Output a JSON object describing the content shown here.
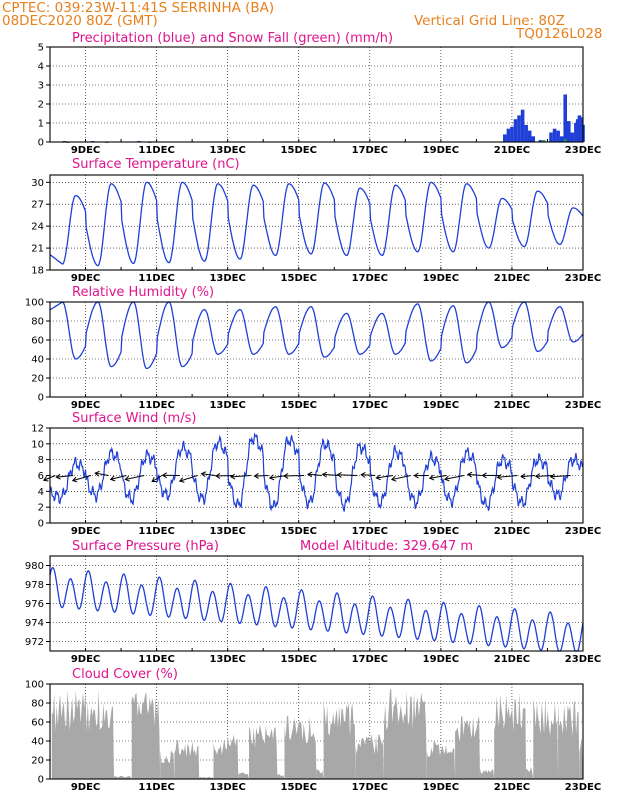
{
  "header": {
    "line1": "CPTEC:  039:23W-11:41S  SERRINHA (BA)",
    "line2": "08DEC2020 80Z (GMT)",
    "grid_line": "Vertical Grid Line: 80Z",
    "code": "TQ0126L028"
  },
  "colors": {
    "header": "#e8801e",
    "title": "#e0148c",
    "line": "#1f3fd6",
    "bar_blue": "#1f3fd6",
    "bar_green": "#1a9a3a",
    "cloud": "#a8a8a8",
    "arrow": "#000000"
  },
  "x_ticks": [
    "9DEC",
    "11DEC",
    "13DEC",
    "15DEC",
    "17DEC",
    "19DEC",
    "21DEC",
    "23DEC"
  ],
  "chart_data": [
    {
      "type": "bar",
      "title": "Precipitation (blue) and Snow Fall (green) (mm/h)",
      "ylim": [
        0,
        5
      ],
      "yticks": [
        "0",
        "1",
        "2",
        "3",
        "4",
        "5"
      ],
      "x_range_days": [
        8.0,
        23.0
      ],
      "series": [
        {
          "name": "Precipitation",
          "points": [
            [
              8.4,
              0.05
            ],
            [
              9.2,
              0.05
            ],
            [
              10.5,
              0.05
            ],
            [
              20.8,
              0.4
            ],
            [
              20.9,
              0.7
            ],
            [
              21.0,
              0.8
            ],
            [
              21.1,
              1.2
            ],
            [
              21.2,
              1.4
            ],
            [
              21.3,
              1.7
            ],
            [
              21.4,
              0.9
            ],
            [
              21.5,
              0.6
            ],
            [
              21.6,
              0.3
            ],
            [
              21.8,
              0.1
            ],
            [
              22.1,
              0.5
            ],
            [
              22.2,
              0.7
            ],
            [
              22.3,
              0.6
            ],
            [
              22.4,
              0.3
            ],
            [
              22.5,
              2.5
            ],
            [
              22.6,
              1.1
            ],
            [
              22.7,
              0.5
            ],
            [
              22.8,
              1.0
            ],
            [
              22.85,
              1.2
            ],
            [
              22.9,
              1.4
            ],
            [
              22.95,
              1.3
            ],
            [
              23.0,
              0.9
            ]
          ]
        },
        {
          "name": "Snow Fall",
          "points": [
            [
              8.5,
              0.03
            ],
            [
              9.6,
              0.03
            ],
            [
              10.8,
              0.03
            ],
            [
              21.9,
              0.1
            ],
            [
              22.5,
              0.15
            ]
          ]
        }
      ]
    },
    {
      "type": "line",
      "title": "Surface Temperature (nC)",
      "ylim": [
        18,
        31
      ],
      "yticks": [
        "18",
        "21",
        "24",
        "27",
        "30"
      ],
      "x_range_days": [
        8.0,
        23.0
      ],
      "daily_extremes": [
        {
          "min": 18.8,
          "max": 28.2
        },
        {
          "min": 18.6,
          "max": 29.8
        },
        {
          "min": 18.9,
          "max": 30.0
        },
        {
          "min": 19.0,
          "max": 30.0
        },
        {
          "min": 19.2,
          "max": 29.8
        },
        {
          "min": 19.5,
          "max": 29.6
        },
        {
          "min": 20.0,
          "max": 29.8
        },
        {
          "min": 20.2,
          "max": 29.9
        },
        {
          "min": 20.0,
          "max": 29.2
        },
        {
          "min": 20.0,
          "max": 29.6
        },
        {
          "min": 20.5,
          "max": 30.0
        },
        {
          "min": 20.5,
          "max": 29.8
        },
        {
          "min": 21.0,
          "max": 27.8
        },
        {
          "min": 21.2,
          "max": 28.8
        },
        {
          "min": 21.5,
          "max": 26.5
        }
      ]
    },
    {
      "type": "line",
      "title": "Relative Humidity (%)",
      "ylim": [
        0,
        100
      ],
      "yticks": [
        "0",
        "20",
        "40",
        "60",
        "80",
        "100"
      ],
      "x_range_days": [
        8.0,
        23.0
      ],
      "daily_extremes": [
        {
          "min": 40,
          "max": 100
        },
        {
          "min": 32,
          "max": 100
        },
        {
          "min": 30,
          "max": 100
        },
        {
          "min": 32,
          "max": 100
        },
        {
          "min": 45,
          "max": 92
        },
        {
          "min": 45,
          "max": 92
        },
        {
          "min": 45,
          "max": 95
        },
        {
          "min": 42,
          "max": 95
        },
        {
          "min": 45,
          "max": 88
        },
        {
          "min": 45,
          "max": 88
        },
        {
          "min": 38,
          "max": 98
        },
        {
          "min": 36,
          "max": 96
        },
        {
          "min": 52,
          "max": 100
        },
        {
          "min": 48,
          "max": 100
        },
        {
          "min": 58,
          "max": 95
        }
      ]
    },
    {
      "type": "line",
      "title": "Surface Wind (m/s)",
      "ylim": [
        0,
        12
      ],
      "yticks": [
        "0",
        "2",
        "4",
        "6",
        "8",
        "10",
        "12"
      ],
      "x_range_days": [
        8.0,
        23.0
      ],
      "speed_daily_extremes": [
        {
          "min": 3.2,
          "max": 7.5
        },
        {
          "min": 3.5,
          "max": 8.8
        },
        {
          "min": 3.0,
          "max": 8.5
        },
        {
          "min": 3.5,
          "max": 9.5
        },
        {
          "min": 3.0,
          "max": 10.2
        },
        {
          "min": 2.2,
          "max": 10.8
        },
        {
          "min": 2.0,
          "max": 10.5
        },
        {
          "min": 2.5,
          "max": 10.0
        },
        {
          "min": 2.2,
          "max": 9.6
        },
        {
          "min": 2.5,
          "max": 9.0
        },
        {
          "min": 2.6,
          "max": 8.2
        },
        {
          "min": 2.8,
          "max": 8.8
        },
        {
          "min": 2.2,
          "max": 8.0
        },
        {
          "min": 2.5,
          "max": 8.0
        },
        {
          "min": 3.5,
          "max": 8.0
        }
      ],
      "vector_arrows": "wind direction vectors drawn along 6 m/s reference"
    },
    {
      "type": "line",
      "title": "Surface Pressure (hPa)",
      "subtitle": "Model Altitude: 329.647 m",
      "ylim": [
        971,
        981
      ],
      "yticks": [
        "972",
        "974",
        "976",
        "978",
        "980"
      ],
      "x_range_days": [
        8.0,
        23.0
      ],
      "trend_start": 977.5,
      "trend_end": 972.5,
      "semidiurnal_amplitude": 1.8
    },
    {
      "type": "area",
      "title": "Cloud Cover (%)",
      "ylim": [
        0,
        100
      ],
      "yticks": [
        "0",
        "20",
        "40",
        "60",
        "80",
        "100"
      ],
      "x_range_days": [
        8.0,
        23.0
      ],
      "segments": [
        {
          "from": 8.05,
          "to": 9.8,
          "level": 90
        },
        {
          "from": 9.8,
          "to": 10.3,
          "level": 3
        },
        {
          "from": 10.3,
          "to": 11.1,
          "level": 88
        },
        {
          "from": 11.1,
          "to": 11.5,
          "level": 30
        },
        {
          "from": 11.5,
          "to": 12.2,
          "level": 40
        },
        {
          "from": 12.2,
          "to": 12.6,
          "level": 2
        },
        {
          "from": 12.6,
          "to": 13.3,
          "level": 45
        },
        {
          "from": 13.3,
          "to": 13.6,
          "level": 8
        },
        {
          "from": 13.6,
          "to": 14.4,
          "level": 55
        },
        {
          "from": 14.4,
          "to": 14.6,
          "level": 5
        },
        {
          "from": 14.6,
          "to": 15.5,
          "level": 65
        },
        {
          "from": 15.5,
          "to": 15.7,
          "level": 10
        },
        {
          "from": 15.7,
          "to": 16.6,
          "level": 80
        },
        {
          "from": 16.6,
          "to": 17.4,
          "level": 45
        },
        {
          "from": 17.4,
          "to": 18.6,
          "level": 92
        },
        {
          "from": 18.6,
          "to": 19.4,
          "level": 40
        },
        {
          "from": 19.4,
          "to": 20.1,
          "level": 65
        },
        {
          "from": 20.1,
          "to": 20.5,
          "level": 10
        },
        {
          "from": 20.5,
          "to": 21.4,
          "level": 88
        },
        {
          "from": 21.4,
          "to": 21.6,
          "level": 12
        },
        {
          "from": 21.6,
          "to": 22.3,
          "level": 82
        },
        {
          "from": 22.3,
          "to": 22.9,
          "level": 80
        },
        {
          "from": 22.9,
          "to": 23.0,
          "level": 45
        }
      ]
    }
  ]
}
